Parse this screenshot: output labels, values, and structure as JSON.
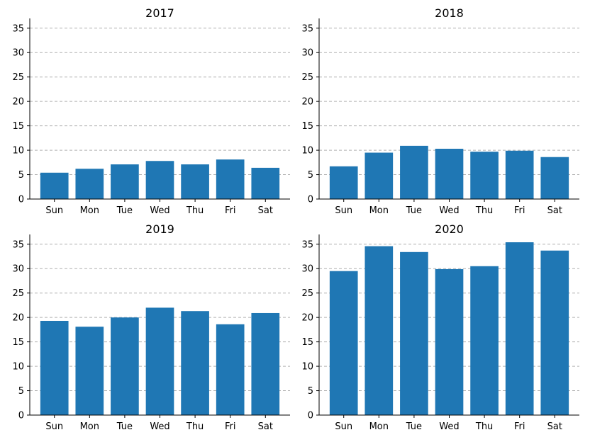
{
  "chart_data": [
    {
      "type": "bar",
      "title": "2017",
      "categories": [
        "Sun",
        "Mon",
        "Tue",
        "Wed",
        "Thu",
        "Fri",
        "Sat"
      ],
      "values": [
        5.4,
        6.2,
        7.1,
        7.8,
        7.1,
        8.1,
        6.4
      ],
      "ylim": [
        0,
        37
      ],
      "yticks": [
        0,
        5,
        10,
        15,
        20,
        25,
        30,
        35
      ],
      "grid": "y-dashed",
      "bar_color": "#1f77b4"
    },
    {
      "type": "bar",
      "title": "2018",
      "categories": [
        "Sun",
        "Mon",
        "Tue",
        "Wed",
        "Thu",
        "Fri",
        "Sat"
      ],
      "values": [
        6.7,
        9.5,
        10.9,
        10.3,
        9.7,
        9.9,
        8.6
      ],
      "ylim": [
        0,
        37
      ],
      "yticks": [
        0,
        5,
        10,
        15,
        20,
        25,
        30,
        35
      ],
      "grid": "y-dashed",
      "bar_color": "#1f77b4"
    },
    {
      "type": "bar",
      "title": "2019",
      "categories": [
        "Sun",
        "Mon",
        "Tue",
        "Wed",
        "Thu",
        "Fri",
        "Sat"
      ],
      "values": [
        19.3,
        18.1,
        20.0,
        22.0,
        21.3,
        18.6,
        20.9
      ],
      "ylim": [
        0,
        37
      ],
      "yticks": [
        0,
        5,
        10,
        15,
        20,
        25,
        30,
        35
      ],
      "grid": "y-dashed",
      "bar_color": "#1f77b4"
    },
    {
      "type": "bar",
      "title": "2020",
      "categories": [
        "Sun",
        "Mon",
        "Tue",
        "Wed",
        "Thu",
        "Fri",
        "Sat"
      ],
      "values": [
        29.5,
        34.6,
        33.4,
        29.9,
        30.5,
        35.4,
        33.7
      ],
      "ylim": [
        0,
        37
      ],
      "yticks": [
        0,
        5,
        10,
        15,
        20,
        25,
        30,
        35
      ],
      "grid": "y-dashed",
      "bar_color": "#1f77b4"
    }
  ]
}
